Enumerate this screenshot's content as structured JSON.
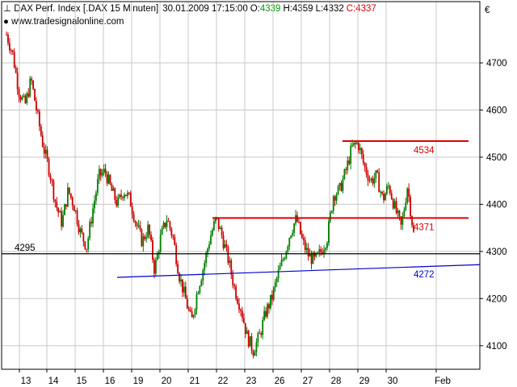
{
  "header": {
    "title": "DAX Perf. Index [.DAX  15 Minuten]",
    "datetime": "30.01.2009 17:15:00",
    "open_label": "O:",
    "open_value": "4339",
    "high_label": "H:",
    "high_value": "4359",
    "low_label": "L:",
    "low_value": "4332",
    "close_label": "C:",
    "close_value": "4337"
  },
  "source": "www.tradesignalonline.com",
  "currency_symbol": "€",
  "colors": {
    "up": "#008000",
    "down": "#cc0000",
    "resistance": "#e00000",
    "trendline": "#0000cc",
    "horizontal": "#000000",
    "grid": "#c8c8c8",
    "open_color": "#00a000",
    "close_color": "#e00000"
  },
  "chart_data": {
    "type": "candlestick",
    "instrument": "DAX Perf. Index",
    "interval": "15 Minuten",
    "ylim": [
      4050,
      4830
    ],
    "y_ticks": [
      4100,
      4200,
      4300,
      4400,
      4500,
      4600,
      4700
    ],
    "y_unit": "€",
    "x_tick_labels": [
      "13",
      "14",
      "15",
      "16",
      "19",
      "20",
      "21",
      "22",
      "23",
      "26",
      "27",
      "28",
      "29",
      "30",
      "Feb"
    ],
    "price_path": [
      [
        0,
        4760
      ],
      [
        0.5,
        4720
      ],
      [
        1,
        4640
      ],
      [
        1.5,
        4610
      ],
      [
        2,
        4665
      ],
      [
        2.5,
        4590
      ],
      [
        3,
        4520
      ],
      [
        3.5,
        4470
      ],
      [
        4,
        4400
      ],
      [
        4.5,
        4360
      ],
      [
        5,
        4430
      ],
      [
        5.5,
        4395
      ],
      [
        6,
        4340
      ],
      [
        6.5,
        4310
      ],
      [
        7,
        4390
      ],
      [
        7.5,
        4460
      ],
      [
        8,
        4470
      ],
      [
        8.5,
        4430
      ],
      [
        9,
        4400
      ],
      [
        9.5,
        4430
      ],
      [
        10,
        4410
      ],
      [
        10.5,
        4360
      ],
      [
        11,
        4320
      ],
      [
        11.5,
        4350
      ],
      [
        12,
        4260
      ],
      [
        12.5,
        4330
      ],
      [
        13,
        4370
      ],
      [
        13.5,
        4330
      ],
      [
        14,
        4250
      ],
      [
        14.5,
        4200
      ],
      [
        15,
        4150
      ],
      [
        15.5,
        4220
      ],
      [
        16,
        4270
      ],
      [
        16.5,
        4330
      ],
      [
        17,
        4370
      ],
      [
        17.5,
        4330
      ],
      [
        18,
        4280
      ],
      [
        18.5,
        4220
      ],
      [
        19,
        4180
      ],
      [
        19.5,
        4120
      ],
      [
        20,
        4090
      ],
      [
        20.5,
        4120
      ],
      [
        21,
        4170
      ],
      [
        21.5,
        4200
      ],
      [
        22,
        4250
      ],
      [
        22.5,
        4290
      ],
      [
        23,
        4340
      ],
      [
        23.5,
        4370
      ],
      [
        24,
        4320
      ],
      [
        24.5,
        4290
      ],
      [
        25,
        4280
      ],
      [
        25.5,
        4300
      ],
      [
        26,
        4330
      ],
      [
        26.5,
        4420
      ],
      [
        27,
        4430
      ],
      [
        27.5,
        4470
      ],
      [
        28,
        4520
      ],
      [
        28.5,
        4530
      ],
      [
        29,
        4480
      ],
      [
        29.5,
        4450
      ],
      [
        30,
        4460
      ],
      [
        30.5,
        4410
      ],
      [
        31,
        4440
      ],
      [
        31.5,
        4390
      ],
      [
        32,
        4350
      ],
      [
        32.5,
        4440
      ],
      [
        33,
        4337
      ]
    ],
    "annotations": [
      {
        "kind": "horizontal",
        "label": "4295",
        "value": 4295,
        "color": "#000000"
      },
      {
        "kind": "resistance",
        "label": "4534",
        "value": 4534,
        "color": "#e00000"
      },
      {
        "kind": "resistance",
        "label": "4371",
        "value": 4371,
        "color": "#e00000"
      },
      {
        "kind": "trendline",
        "label": "4272",
        "value_start": 4245,
        "value_end": 4272,
        "color": "#0000cc"
      }
    ]
  }
}
